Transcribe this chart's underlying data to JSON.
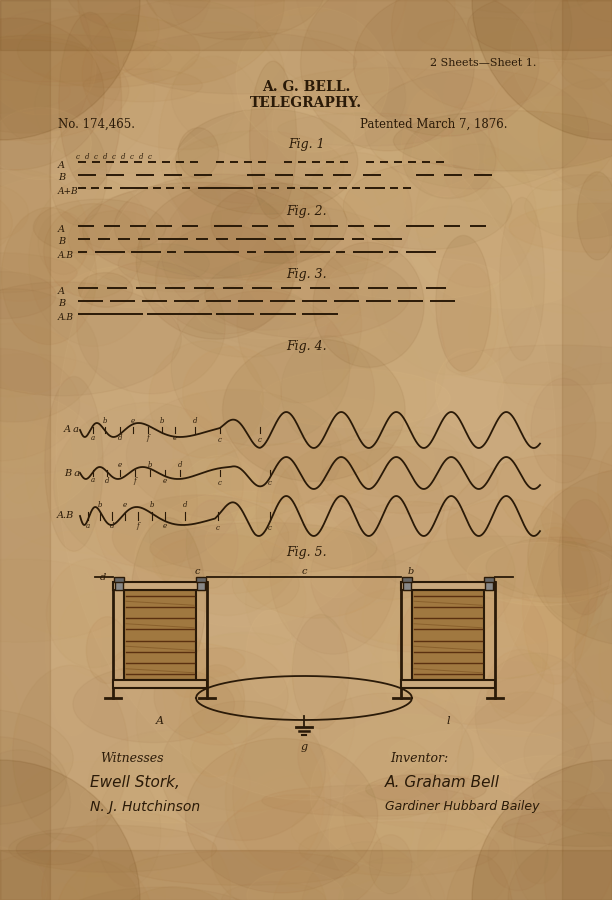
{
  "bg_color": "#C9A87C",
  "bg_light": "#D9BC94",
  "bg_dark": "#9B7040",
  "ink_color": "#2A1A08",
  "sheet_info": "2 Sheets—Sheet 1.",
  "title_line1": "A. G. BELL.",
  "title_line2": "TELEGRAPHY.",
  "patent_no": "No. 174,465.",
  "patent_date": "Patented March 7, 1876.",
  "fig1_label": "Fig. 1",
  "fig2_label": "Fig. 2.",
  "fig3_label": "Fig. 3.",
  "fig4_label": "Fig. 4.",
  "fig5_label": "Fig. 5.",
  "witnesses_label": "Witnesses",
  "inventor_label": "Inventor:"
}
